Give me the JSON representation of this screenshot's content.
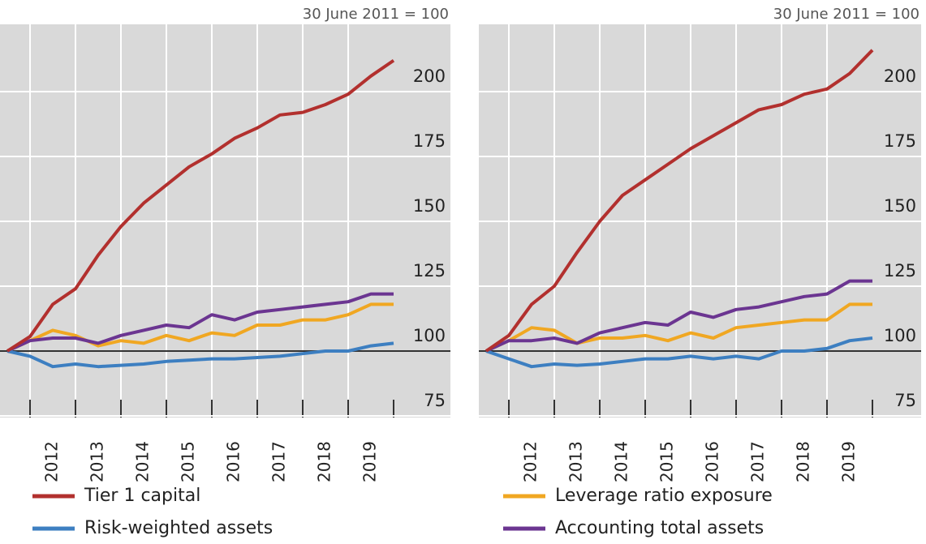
{
  "chart_data": [
    {
      "type": "line",
      "title": "30 June 2011 = 100",
      "x": [
        2011.5,
        2012.0,
        2012.5,
        2013.0,
        2013.5,
        2014.0,
        2014.5,
        2015.0,
        2015.5,
        2016.0,
        2016.5,
        2017.0,
        2017.5,
        2018.0,
        2018.5,
        2019.0,
        2019.5,
        2020.0
      ],
      "xlim": [
        2011.5,
        2020.0
      ],
      "xticks": [
        2012,
        2013,
        2014,
        2015,
        2016,
        2017,
        2018,
        2019
      ],
      "ylim": [
        75,
        225
      ],
      "yticks": [
        75,
        100,
        125,
        150,
        175,
        200
      ],
      "reference_line": 100,
      "grid": true,
      "series": [
        {
          "name": "Tier 1 capital",
          "color": "#b2302e",
          "values": [
            100,
            105.6,
            118,
            124,
            137,
            148,
            157,
            164,
            171,
            176,
            182,
            186,
            191,
            192,
            195,
            199,
            206,
            212
          ]
        },
        {
          "name": "Risk-weighted assets",
          "color": "#3d7fc1",
          "values": [
            100,
            98,
            94,
            95,
            94,
            94.5,
            95,
            96,
            96.5,
            97,
            97,
            97.5,
            98,
            99,
            100,
            100,
            102,
            103
          ]
        },
        {
          "name": "Leverage ratio exposure",
          "color": "#f0a722",
          "values": [
            100,
            104,
            108,
            106,
            102,
            104,
            103,
            106,
            104,
            107,
            106,
            110,
            110,
            112,
            112,
            114,
            118,
            118
          ]
        },
        {
          "name": "Accounting total assets",
          "color": "#6b3591",
          "values": [
            100,
            104,
            105,
            105,
            103,
            106,
            108,
            110,
            109,
            114,
            112,
            115,
            116,
            117,
            118,
            119,
            122,
            122
          ]
        }
      ]
    },
    {
      "type": "line",
      "title": "30 June 2011 = 100",
      "x": [
        2011.5,
        2012.0,
        2012.5,
        2013.0,
        2013.5,
        2014.0,
        2014.5,
        2015.0,
        2015.5,
        2016.0,
        2016.5,
        2017.0,
        2017.5,
        2018.0,
        2018.5,
        2019.0,
        2019.5,
        2020.0
      ],
      "xlim": [
        2011.5,
        2020.0
      ],
      "xticks": [
        2012,
        2013,
        2014,
        2015,
        2016,
        2017,
        2018,
        2019
      ],
      "ylim": [
        75,
        225
      ],
      "yticks": [
        75,
        100,
        125,
        150,
        175,
        200
      ],
      "reference_line": 100,
      "grid": true,
      "series": [
        {
          "color": "#b2302e",
          "values": [
            100,
            106,
            118,
            125,
            138,
            150,
            160,
            166,
            172,
            178,
            183,
            188,
            193,
            195,
            199,
            201,
            207,
            216
          ]
        },
        {
          "color": "#3d7fc1",
          "values": [
            100,
            97,
            94,
            95,
            94.5,
            95,
            96,
            97,
            97,
            98,
            97,
            98,
            97,
            100,
            100,
            101,
            104,
            105
          ]
        },
        {
          "color": "#f0a722",
          "values": [
            100,
            104,
            109,
            108,
            103,
            105,
            105,
            106,
            104,
            107,
            105,
            109,
            110,
            111,
            112,
            112,
            118,
            118
          ]
        },
        {
          "color": "#6b3591",
          "values": [
            100,
            104,
            104,
            105,
            103,
            107,
            109,
            111,
            110,
            115,
            113,
            116,
            117,
            119,
            121,
            122,
            127,
            127
          ]
        }
      ]
    }
  ]
}
